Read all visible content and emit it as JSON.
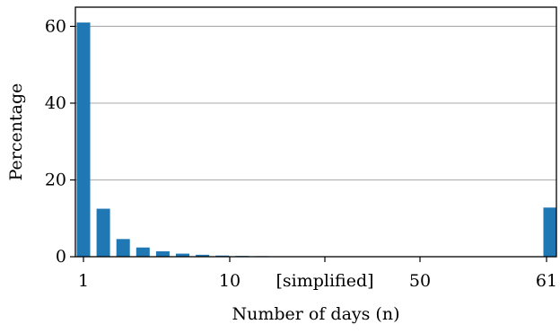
{
  "chart_data": {
    "type": "bar",
    "xlabel": "Number of days (n)",
    "ylabel": "Percentage",
    "ylim": [
      0,
      65
    ],
    "yticks": [
      0,
      20,
      40,
      60
    ],
    "grid": "horizontal",
    "bar_color": "#1f77b4",
    "grid_color": "#b0b0b0",
    "categories": [
      "1",
      "2",
      "3",
      "4",
      "5",
      "6",
      "7",
      "8",
      "9",
      "10",
      "11",
      "61"
    ],
    "values": [
      61.0,
      12.5,
      4.6,
      2.4,
      1.4,
      0.8,
      0.5,
      0.3,
      0.2,
      0.15,
      0.1,
      12.8
    ],
    "xtick_labels": [
      "1",
      "10",
      "[simplified]",
      "50",
      "61"
    ]
  }
}
